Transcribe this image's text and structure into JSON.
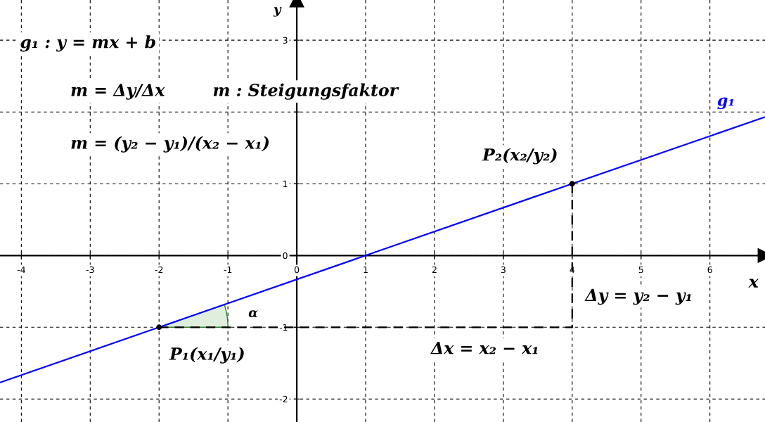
{
  "chart_data": {
    "type": "line",
    "xlabel": "x",
    "ylabel": "y",
    "xlim": [
      -4.31,
      6.8
    ],
    "ylim": [
      -2.32,
      3.56
    ],
    "xticks": [
      -4,
      -3,
      -2,
      -1,
      0,
      1,
      2,
      3,
      4,
      5,
      6
    ],
    "yticks": [
      -2,
      -1,
      0,
      1,
      {
        "value": 2,
        "label": null
      },
      3
    ],
    "grid": true,
    "line_style": "solid",
    "series": [
      {
        "name": "g₁",
        "color": "#0000ff",
        "x": [
          -4.31,
          -2,
          4,
          6.8
        ],
        "values": [
          -1.77,
          -1,
          1,
          1.93
        ]
      },
      {
        "type": "line",
        "line_style": "dashed",
        "color": "#000000",
        "x": [
          -2,
          4,
          4
        ],
        "values": [
          -1,
          -1,
          1
        ]
      },
      {
        "type": "scatter",
        "marker": "circle",
        "color": "#000000",
        "x": [
          -2,
          4
        ],
        "values": [
          -1,
          1
        ]
      }
    ],
    "annotations": [
      "g₁ : y = mx + b",
      "m = Δy/Δx",
      "m : Steigungsfaktor",
      "m = (y₂ − y₁)/(x₂ − x₁)",
      "P₂(x₂/y₂)",
      "P₁(x₁/y₁)",
      "Δy = y₂ − y₁",
      "Δx = x₂ − x₁",
      "α"
    ]
  }
}
